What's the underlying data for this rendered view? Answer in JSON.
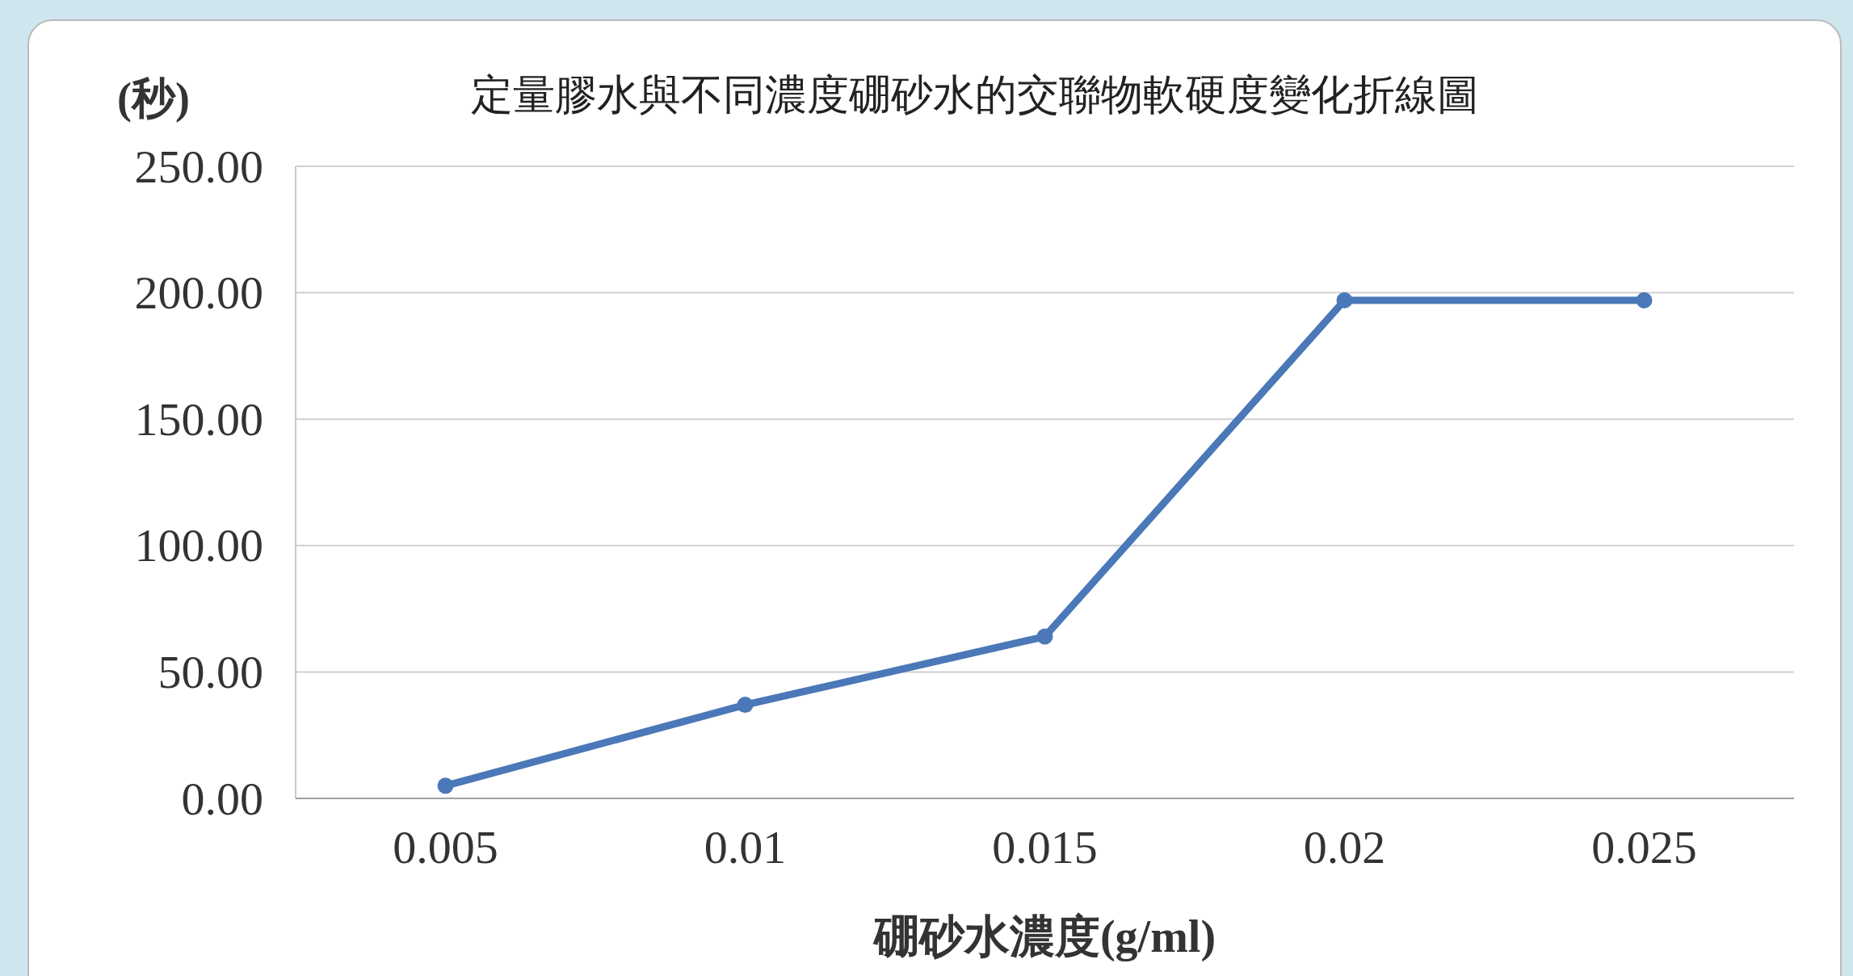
{
  "chart_data": {
    "type": "line",
    "title": "定量膠水與不同濃度硼砂水的交聯物軟硬度變化折線圖",
    "ylabel": "(秒)",
    "xlabel": "硼砂水濃度(g/ml)",
    "categories": [
      "0.005",
      "0.01",
      "0.015",
      "0.02",
      "0.025"
    ],
    "series": [
      {
        "color": "#4a78b8",
        "values": [
          5,
          37,
          64,
          197,
          197
        ]
      }
    ],
    "ylim": [
      0,
      250
    ],
    "yticks": [
      {
        "value": 0,
        "label": "0.00"
      },
      {
        "value": 50,
        "label": "50.00"
      },
      {
        "value": 100,
        "label": "100.00"
      },
      {
        "value": 150,
        "label": "150.00"
      },
      {
        "value": 200,
        "label": "200.00"
      },
      {
        "value": 250,
        "label": "250.00"
      }
    ],
    "grid": "y",
    "marker": "circle",
    "line_style": "solid"
  }
}
